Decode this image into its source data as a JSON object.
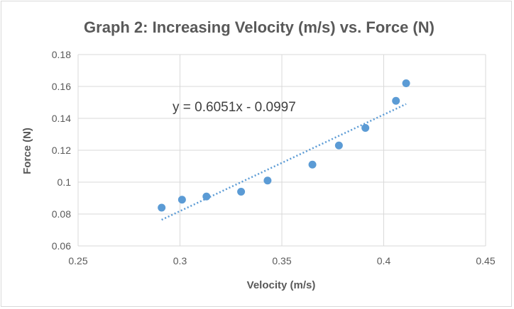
{
  "chart_data": {
    "type": "scatter",
    "title": "Graph 2: Increasing Velocity (m/s) vs. Force (N)",
    "xlabel": "Velocity (m/s)",
    "ylabel": "Force (N)",
    "xlim": [
      0.25,
      0.45
    ],
    "ylim": [
      0.06,
      0.18
    ],
    "xticks": [
      0.25,
      0.3,
      0.35,
      0.4,
      0.45
    ],
    "xtick_labels": [
      "0.25",
      "0.3",
      "0.35",
      "0.4",
      "0.45"
    ],
    "yticks": [
      0.06,
      0.08,
      0.1,
      0.12,
      0.14,
      0.16,
      0.18
    ],
    "ytick_labels": [
      "0.06",
      "0.08",
      "0.1",
      "0.12",
      "0.14",
      "0.16",
      "0.18"
    ],
    "grid": true,
    "legend": "none",
    "series": [
      {
        "color": "#5b9bd5",
        "points": [
          {
            "x": 0.291,
            "y": 0.084
          },
          {
            "x": 0.301,
            "y": 0.089
          },
          {
            "x": 0.313,
            "y": 0.091
          },
          {
            "x": 0.33,
            "y": 0.094
          },
          {
            "x": 0.343,
            "y": 0.101
          },
          {
            "x": 0.365,
            "y": 0.111
          },
          {
            "x": 0.378,
            "y": 0.123
          },
          {
            "x": 0.391,
            "y": 0.134
          },
          {
            "x": 0.406,
            "y": 0.151
          },
          {
            "x": 0.411,
            "y": 0.162
          }
        ]
      }
    ],
    "trendline": {
      "type": "linear",
      "slope": 0.6051,
      "intercept": -0.0997,
      "x_range": [
        0.291,
        0.411
      ],
      "style": "dotted",
      "color": "#5b9bd5",
      "equation_label": "y = 0.6051x - 0.0997"
    }
  }
}
